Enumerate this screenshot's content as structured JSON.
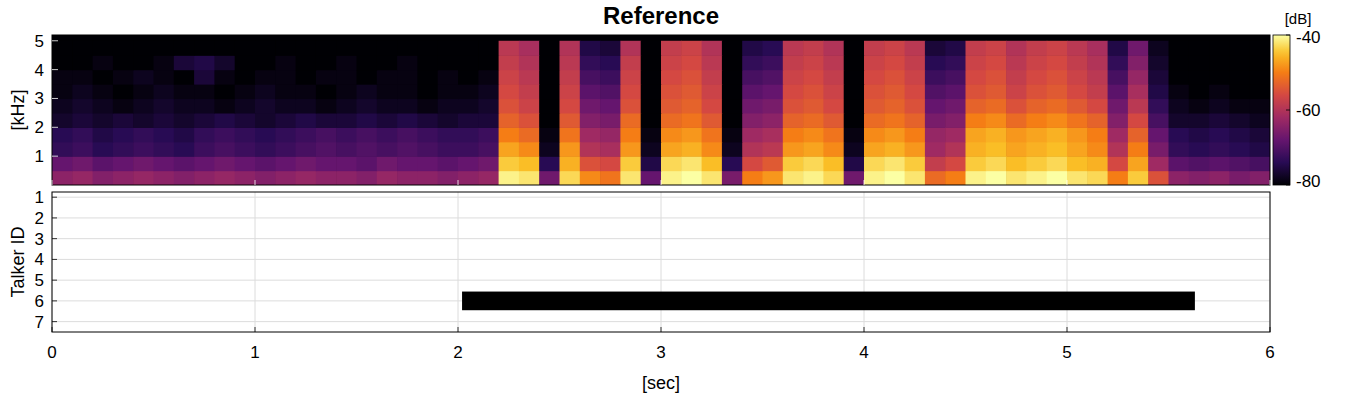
{
  "chart_data": [
    {
      "type": "heatmap",
      "title": "Reference",
      "y_label": "[kHz]",
      "xlim": [
        0,
        6
      ],
      "xticks": [
        0,
        1,
        2,
        3,
        4,
        5,
        6
      ],
      "ylim": [
        0,
        5.2
      ],
      "yticks": [
        1,
        2,
        3,
        4,
        5
      ],
      "tick_labels": "y",
      "x": [
        0.05,
        0.15,
        0.25,
        0.35,
        0.45,
        0.55,
        0.65,
        0.75,
        0.85,
        0.95,
        1.05,
        1.15,
        1.25,
        1.35,
        1.45,
        1.55,
        1.65,
        1.75,
        1.85,
        1.95,
        2.05,
        2.15,
        2.25,
        2.35,
        2.45,
        2.55,
        2.65,
        2.75,
        2.85,
        2.95,
        3.05,
        3.15,
        3.25,
        3.35,
        3.45,
        3.55,
        3.65,
        3.75,
        3.85,
        3.95,
        4.05,
        4.15,
        4.25,
        4.35,
        4.45,
        4.55,
        4.65,
        4.75,
        4.85,
        4.95,
        5.05,
        5.15,
        5.25,
        5.35,
        5.45,
        5.55,
        5.65,
        5.75,
        5.85,
        5.95
      ],
      "y": [
        0.25,
        0.75,
        1.25,
        1.75,
        2.25,
        2.75,
        3.25,
        3.75,
        4.25,
        4.75
      ],
      "cells": [
        [
          -64,
          -63,
          -65,
          -64,
          -63,
          -64,
          -65,
          -64,
          -63,
          -64,
          -65,
          -64,
          -63,
          -64,
          -64,
          -65,
          -63,
          -64,
          -64,
          -65,
          -64,
          -63,
          -41,
          -42,
          -67,
          -43,
          -49,
          -51,
          -42,
          -68,
          -41,
          -40,
          -42,
          -66,
          -50,
          -48,
          -42,
          -41,
          -43,
          -67,
          -41,
          -40,
          -42,
          -52,
          -50,
          -41,
          -40,
          -42,
          -41,
          -40,
          -42,
          -43,
          -50,
          -44,
          -55,
          -64,
          -65,
          -64,
          -66,
          -65
        ],
        [
          -68,
          -67,
          -69,
          -68,
          -67,
          -68,
          -69,
          -68,
          -67,
          -68,
          -69,
          -68,
          -67,
          -68,
          -68,
          -69,
          -67,
          -68,
          -68,
          -69,
          -68,
          -67,
          -44,
          -45,
          -74,
          -46,
          -55,
          -56,
          -44,
          -75,
          -43,
          -42,
          -45,
          -74,
          -56,
          -54,
          -44,
          -43,
          -45,
          -75,
          -43,
          -42,
          -44,
          -58,
          -56,
          -44,
          -43,
          -45,
          -44,
          -43,
          -45,
          -46,
          -56,
          -47,
          -62,
          -69,
          -70,
          -69,
          -70,
          -71
        ],
        [
          -73,
          -72,
          -74,
          -73,
          -72,
          -73,
          -74,
          -72,
          -71,
          -72,
          -73,
          -72,
          -71,
          -70,
          -71,
          -70,
          -71,
          -70,
          -71,
          -72,
          -72,
          -71,
          -47,
          -49,
          -78,
          -48,
          -60,
          -61,
          -48,
          -78,
          -47,
          -46,
          -49,
          -78,
          -60,
          -59,
          -48,
          -47,
          -49,
          -78,
          -47,
          -46,
          -48,
          -62,
          -60,
          -46,
          -45,
          -47,
          -46,
          -45,
          -47,
          -49,
          -60,
          -50,
          -66,
          -73,
          -74,
          -73,
          -74,
          -75
        ],
        [
          -74,
          -73,
          -75,
          -74,
          -73,
          -74,
          -75,
          -73,
          -72,
          -73,
          -74,
          -73,
          -72,
          -71,
          -72,
          -71,
          -72,
          -71,
          -72,
          -73,
          -73,
          -72,
          -50,
          -52,
          -79,
          -51,
          -62,
          -63,
          -50,
          -79,
          -49,
          -48,
          -51,
          -79,
          -62,
          -61,
          -50,
          -49,
          -51,
          -79,
          -49,
          -48,
          -50,
          -63,
          -62,
          -47,
          -46,
          -48,
          -47,
          -46,
          -48,
          -50,
          -62,
          -53,
          -68,
          -74,
          -75,
          -74,
          -75,
          -76
        ],
        [
          -77,
          -76,
          -77,
          -76,
          -77,
          -76,
          -77,
          -76,
          -75,
          -76,
          -77,
          -76,
          -75,
          -76,
          -76,
          -75,
          -76,
          -75,
          -76,
          -77,
          -76,
          -76,
          -53,
          -55,
          -80,
          -54,
          -65,
          -66,
          -52,
          -80,
          -52,
          -51,
          -54,
          -80,
          -65,
          -64,
          -53,
          -52,
          -54,
          -80,
          -52,
          -51,
          -53,
          -66,
          -65,
          -50,
          -49,
          -52,
          -50,
          -49,
          -51,
          -53,
          -65,
          -56,
          -71,
          -77,
          -77,
          -76,
          -77,
          -78
        ],
        [
          -78,
          -77,
          -78,
          -79,
          -78,
          -77,
          -78,
          -78,
          -79,
          -78,
          -77,
          -78,
          -78,
          -79,
          -78,
          -77,
          -78,
          -78,
          -79,
          -78,
          -78,
          -77,
          -55,
          -57,
          -80,
          -56,
          -67,
          -68,
          -55,
          -80,
          -54,
          -53,
          -56,
          -80,
          -67,
          -66,
          -55,
          -54,
          -56,
          -80,
          -54,
          -53,
          -55,
          -68,
          -67,
          -53,
          -52,
          -55,
          -53,
          -52,
          -54,
          -56,
          -67,
          -59,
          -73,
          -78,
          -79,
          -78,
          -79,
          -79
        ],
        [
          -79,
          -78,
          -79,
          -80,
          -79,
          -78,
          -79,
          -79,
          -80,
          -79,
          -78,
          -79,
          -79,
          -80,
          -79,
          -78,
          -79,
          -79,
          -80,
          -79,
          -79,
          -78,
          -56,
          -58,
          -80,
          -57,
          -69,
          -70,
          -56,
          -80,
          -55,
          -54,
          -57,
          -80,
          -69,
          -68,
          -56,
          -55,
          -57,
          -80,
          -55,
          -54,
          -56,
          -70,
          -69,
          -55,
          -54,
          -57,
          -55,
          -54,
          -56,
          -58,
          -69,
          -61,
          -75,
          -79,
          -80,
          -79,
          -80,
          -80
        ],
        [
          -79,
          -79,
          -80,
          -79,
          -78,
          -79,
          -80,
          -76,
          -79,
          -80,
          -79,
          -79,
          -80,
          -79,
          -79,
          -80,
          -79,
          -79,
          -80,
          -79,
          -80,
          -79,
          -57,
          -59,
          -80,
          -58,
          -71,
          -72,
          -57,
          -80,
          -56,
          -55,
          -58,
          -80,
          -71,
          -70,
          -57,
          -56,
          -58,
          -80,
          -56,
          -55,
          -57,
          -72,
          -71,
          -56,
          -55,
          -58,
          -56,
          -55,
          -57,
          -59,
          -71,
          -63,
          -76,
          -80,
          -80,
          -80,
          -80,
          -80
        ],
        [
          -80,
          -80,
          -79,
          -80,
          -80,
          -79,
          -76,
          -75,
          -77,
          -80,
          -80,
          -79,
          -80,
          -80,
          -79,
          -80,
          -80,
          -79,
          -80,
          -80,
          -80,
          -80,
          -58,
          -60,
          -80,
          -59,
          -73,
          -74,
          -58,
          -80,
          -57,
          -56,
          -59,
          -80,
          -73,
          -72,
          -58,
          -57,
          -59,
          -80,
          -57,
          -56,
          -58,
          -74,
          -73,
          -57,
          -56,
          -59,
          -57,
          -56,
          -58,
          -60,
          -73,
          -65,
          -77,
          -80,
          -80,
          -80,
          -80,
          -80
        ],
        [
          -80,
          -80,
          -80,
          -80,
          -80,
          -80,
          -80,
          -80,
          -80,
          -80,
          -80,
          -80,
          -80,
          -80,
          -80,
          -80,
          -80,
          -80,
          -80,
          -80,
          -80,
          -80,
          -59,
          -61,
          -80,
          -60,
          -75,
          -76,
          -60,
          -80,
          -58,
          -57,
          -60,
          -80,
          -75,
          -74,
          -59,
          -58,
          -60,
          -80,
          -58,
          -57,
          -59,
          -76,
          -75,
          -58,
          -57,
          -60,
          -58,
          -57,
          -59,
          -61,
          -75,
          -67,
          -78,
          -80,
          -80,
          -80,
          -80,
          -80
        ]
      ],
      "colorbar": {
        "label": "[dB]",
        "range": [
          -80,
          -40
        ],
        "ticks": [
          -40,
          -60,
          -80
        ]
      }
    },
    {
      "type": "timeline",
      "orientation": "horizontal",
      "y_label": "Talker ID",
      "x_label": "[sec]",
      "xlim": [
        0,
        6
      ],
      "xticks": [
        0,
        1,
        2,
        3,
        4,
        5,
        6
      ],
      "ylim": [
        0.75,
        7.5
      ],
      "yticks": [
        1,
        2,
        3,
        4,
        5,
        6,
        7
      ],
      "grid": true,
      "color": "#000000",
      "segments": [
        {
          "talker": 6,
          "start": 2.02,
          "end": 5.63
        }
      ]
    }
  ]
}
